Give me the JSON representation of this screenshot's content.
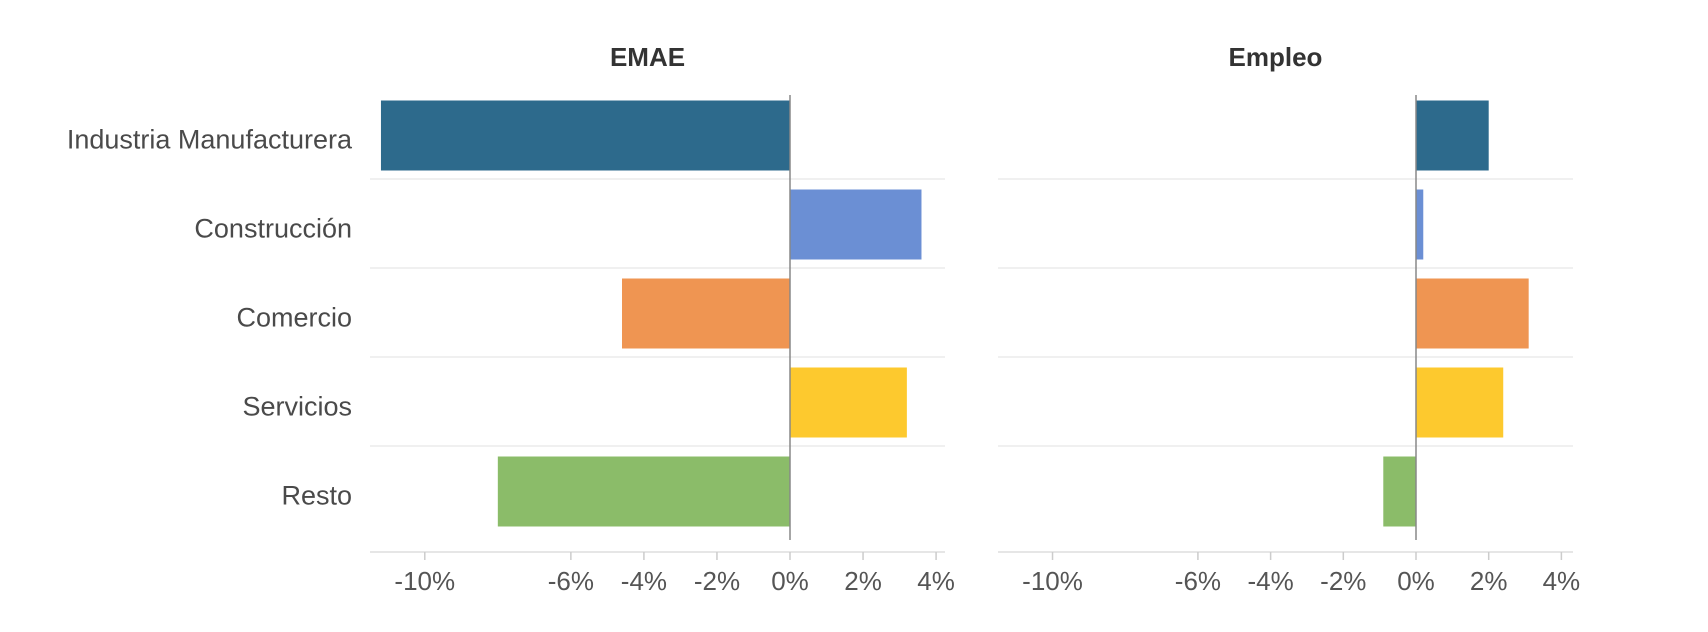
{
  "chart_data": {
    "type": "bar",
    "orientation": "horizontal",
    "categories": [
      "Industria Manufacturera",
      "Construcción",
      "Comercio",
      "Servicios",
      "Resto"
    ],
    "colors": [
      "#2d6a8c",
      "#6b8fd4",
      "#ef9552",
      "#fdc92e",
      "#8bbc69"
    ],
    "grid": true,
    "xlim": [
      -11.5,
      4
    ],
    "xticks": [
      -10,
      -6,
      -4,
      -2,
      0,
      2,
      4
    ],
    "xtick_labels": [
      "-10%",
      "-6%",
      "-4%",
      "-2%",
      "0%",
      "2%",
      "4%"
    ],
    "panels": [
      {
        "title": "EMAE",
        "values": [
          -11.2,
          3.6,
          -4.6,
          3.2,
          -8.0
        ]
      },
      {
        "title": "Empleo",
        "values": [
          2.0,
          0.2,
          3.1,
          2.4,
          -0.9
        ]
      }
    ]
  }
}
